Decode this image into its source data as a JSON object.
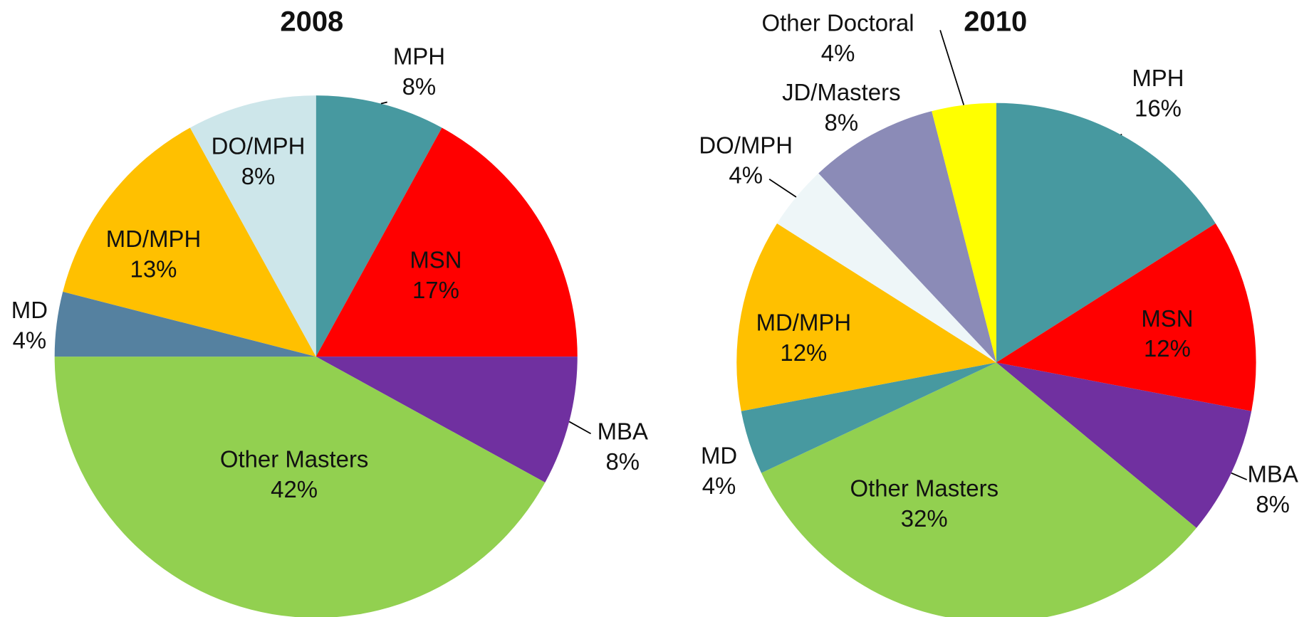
{
  "chart_data": [
    {
      "type": "pie",
      "title": "2008",
      "categories": [
        "MPH",
        "MSN",
        "MBA",
        "Other Masters",
        "MD",
        "MD/MPH",
        "DO/MPH"
      ],
      "values": [
        8,
        17,
        8,
        42,
        4,
        13,
        8
      ],
      "value_labels": [
        "8%",
        "17%",
        "8%",
        "42%",
        "4%",
        "13%",
        "8%"
      ],
      "colors": [
        "#4799a0",
        "#ff0000",
        "#7030a0",
        "#92d050",
        "#5581a0",
        "#ffc000",
        "#cde6ea"
      ]
    },
    {
      "type": "pie",
      "title": "2010",
      "categories": [
        "MPH",
        "MSN",
        "MBA",
        "Other Masters",
        "MD",
        "MD/MPH",
        "DO/MPH",
        "JD/Masters",
        "Other Doctoral"
      ],
      "values": [
        16,
        12,
        8,
        32,
        4,
        12,
        4,
        8,
        4
      ],
      "value_labels": [
        "16%",
        "12%",
        "8%",
        "32%",
        "4%",
        "12%",
        "4%",
        "8%",
        "4%"
      ],
      "colors": [
        "#4799a0",
        "#ff0000",
        "#7030a0",
        "#92d050",
        "#4799a0",
        "#ffc000",
        "#eef6f8",
        "#8b8bb7",
        "#ffff00"
      ]
    }
  ]
}
